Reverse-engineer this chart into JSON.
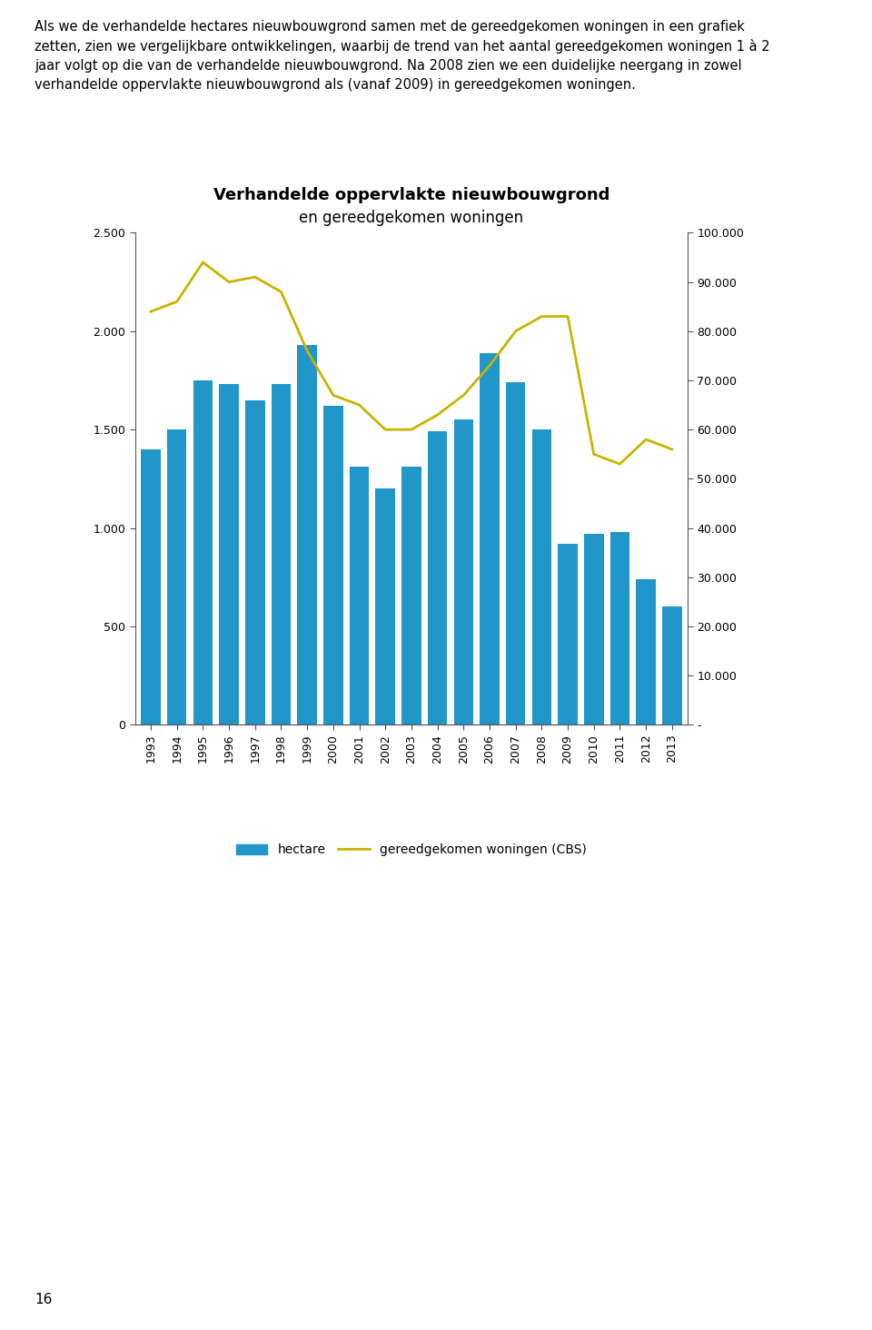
{
  "title_line1": "Verhandelde oppervlakte nieuwbouwgrond",
  "title_line2": "en gereedgekomen woningen",
  "years": [
    1993,
    1994,
    1995,
    1996,
    1997,
    1998,
    1999,
    2000,
    2001,
    2002,
    2003,
    2004,
    2005,
    2006,
    2007,
    2008,
    2009,
    2010,
    2011,
    2012,
    2013
  ],
  "hectare": [
    1400,
    1500,
    1750,
    1730,
    1650,
    1730,
    1930,
    1620,
    1310,
    1200,
    1310,
    1490,
    1550,
    1890,
    1740,
    1500,
    920,
    970,
    980,
    740,
    600
  ],
  "woningen": [
    84000,
    86000,
    94000,
    90000,
    91000,
    88000,
    76000,
    67000,
    65000,
    60000,
    60000,
    63000,
    67000,
    73000,
    80000,
    83000,
    83000,
    55000,
    53000,
    58000,
    56000
  ],
  "bar_color": "#2196C8",
  "line_color": "#C8B400",
  "left_ylim": [
    0,
    2500
  ],
  "left_yticks": [
    0,
    500,
    1000,
    1500,
    2000,
    2500
  ],
  "left_yticklabels": [
    "0",
    "500",
    "1.000",
    "1.500",
    "2.000",
    "2.500"
  ],
  "right_ylim": [
    0,
    100000
  ],
  "right_yticks": [
    0,
    10000,
    20000,
    30000,
    40000,
    50000,
    60000,
    70000,
    80000,
    90000,
    100000
  ],
  "right_yticklabels": [
    "-",
    "10.000",
    "20.000",
    "30.000",
    "40.000",
    "50.000",
    "60.000",
    "70.000",
    "80.000",
    "90.000",
    "100.000"
  ],
  "legend_bar_label": "hectare",
  "legend_line_label": "gereedgekomen woningen (CBS)",
  "text_block": "Als we de verhandelde hectares nieuwbouwgrond samen met de gereedgekomen woningen in een grafiek\nzetten, zien we vergelijkbare ontwikkelingen, waarbij de trend van het aantal gereedgekomen woningen 1 à 2\njaar volgt op die van de verhandelde nieuwbouwgrond. Na 2008 zien we een duidelijke neergang in zowel\nverhandelde oppervlakte nieuwbouwgrond als (vanaf 2009) in gereedgekomen woningen.",
  "page_number": "16",
  "background_color": "#ffffff",
  "title_fontsize": 13,
  "tick_fontsize": 9,
  "legend_fontsize": 10
}
